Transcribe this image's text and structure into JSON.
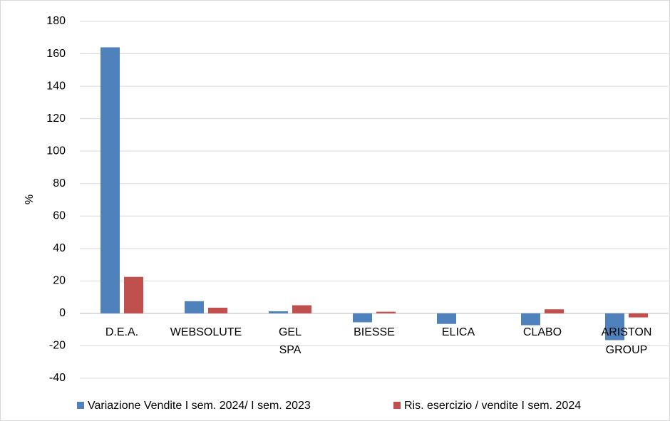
{
  "chart_data": {
    "type": "bar",
    "y_label": "%",
    "categories": [
      "D.E.A.",
      "WEBSOLUTE",
      "GEL SPA",
      "BIESSE",
      "ELICA",
      "CLABO",
      "ARISTON GROUP"
    ],
    "series": [
      {
        "name": "Variazione Vendite I sem. 2024/ I sem. 2023",
        "color": "#4f81bd",
        "values": [
          164,
          7.5,
          1.3,
          -5.5,
          -6.5,
          -7.3,
          -16.5
        ]
      },
      {
        "name": "Ris. esercizio / vendite I sem. 2024",
        "color": "#c0504d",
        "values": [
          22.5,
          3.5,
          5,
          1,
          0,
          2.5,
          -2.5
        ]
      }
    ],
    "ylim": [
      -40,
      180
    ],
    "yticks": [
      -40,
      -20,
      0,
      20,
      40,
      60,
      80,
      100,
      120,
      140,
      160,
      180
    ],
    "grid": true,
    "legend": "bottom"
  }
}
